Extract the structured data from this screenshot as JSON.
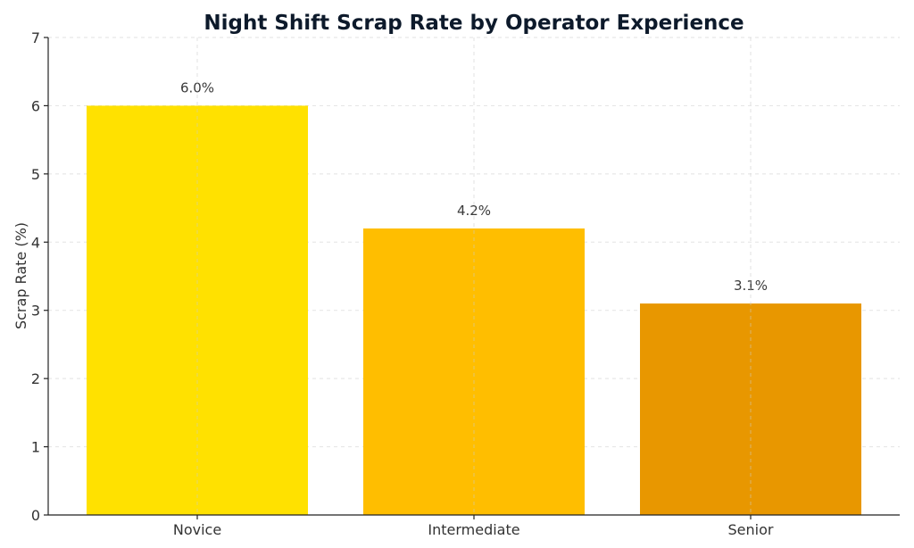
{
  "chart_data": {
    "type": "bar",
    "title": "Night Shift Scrap Rate by Operator Experience",
    "xlabel": "",
    "ylabel": "Scrap Rate (%)",
    "categories": [
      "Novice",
      "Intermediate",
      "Senior"
    ],
    "values": [
      6.0,
      4.2,
      3.1
    ],
    "data_labels": [
      "6.0%",
      "4.2%",
      "3.1%"
    ],
    "colors": [
      "#FFE100",
      "#FFBE00",
      "#E89700"
    ],
    "ylim": [
      0,
      7
    ],
    "yticks": [
      "0",
      "1",
      "2",
      "3",
      "4",
      "5",
      "6",
      "7"
    ],
    "grid": true,
    "legend": "none"
  }
}
